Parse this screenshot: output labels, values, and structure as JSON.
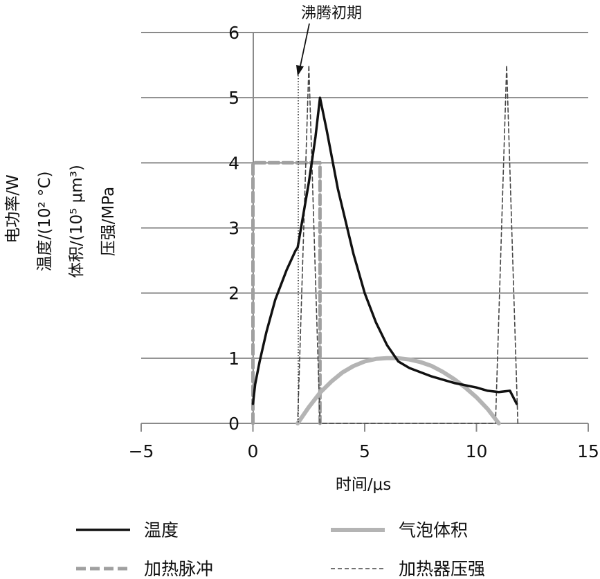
{
  "chart_data": {
    "type": "line",
    "title": "",
    "xlabel": "时间/μs",
    "ylabel_lines": [
      "电功率/W",
      "温度/(10² °C)",
      "体积/(10⁵ μm³)",
      "压强/MPa"
    ],
    "xlim": [
      -5,
      15
    ],
    "ylim": [
      0,
      6
    ],
    "x_ticks": [
      "−5",
      "0",
      "5",
      "10",
      "15"
    ],
    "y_ticks": [
      "0",
      "1",
      "2",
      "3",
      "4",
      "5",
      "6"
    ],
    "grid": "horizontal",
    "legend_position": "bottom",
    "annotation": {
      "text": "沸腾初期",
      "x": 2.0
    },
    "series": [
      {
        "name": "温度",
        "style": "solid",
        "color": "#111111",
        "points": [
          [
            0.0,
            0.3
          ],
          [
            0.1,
            0.6
          ],
          [
            0.3,
            0.95
          ],
          [
            0.6,
            1.4
          ],
          [
            1.0,
            1.9
          ],
          [
            1.5,
            2.35
          ],
          [
            1.9,
            2.65
          ],
          [
            2.0,
            2.7
          ],
          [
            2.2,
            3.1
          ],
          [
            2.5,
            3.7
          ],
          [
            2.8,
            4.4
          ],
          [
            3.0,
            5.0
          ],
          [
            3.3,
            4.5
          ],
          [
            3.8,
            3.6
          ],
          [
            4.5,
            2.6
          ],
          [
            5.0,
            2.0
          ],
          [
            5.5,
            1.55
          ],
          [
            6.0,
            1.2
          ],
          [
            6.5,
            0.95
          ],
          [
            7.0,
            0.85
          ],
          [
            8.0,
            0.72
          ],
          [
            9.0,
            0.62
          ],
          [
            10.0,
            0.55
          ],
          [
            10.5,
            0.5
          ],
          [
            11.0,
            0.48
          ],
          [
            11.5,
            0.5
          ],
          [
            11.8,
            0.3
          ]
        ]
      },
      {
        "name": "气泡体积",
        "style": "solid",
        "color": "#b4b4b4",
        "points": [
          [
            2.0,
            0.0
          ],
          [
            2.5,
            0.25
          ],
          [
            3.0,
            0.47
          ],
          [
            3.5,
            0.64
          ],
          [
            4.0,
            0.78
          ],
          [
            4.5,
            0.88
          ],
          [
            5.0,
            0.95
          ],
          [
            5.5,
            0.99
          ],
          [
            6.0,
            1.0
          ],
          [
            6.5,
            1.0
          ],
          [
            7.0,
            0.98
          ],
          [
            7.5,
            0.94
          ],
          [
            8.0,
            0.88
          ],
          [
            8.5,
            0.79
          ],
          [
            9.0,
            0.68
          ],
          [
            9.5,
            0.55
          ],
          [
            10.0,
            0.4
          ],
          [
            10.5,
            0.22
          ],
          [
            11.0,
            0.0
          ]
        ]
      },
      {
        "name": "加热脉冲",
        "style": "dashed",
        "color": "#a0a0a0",
        "points": [
          [
            0.0,
            0.0
          ],
          [
            0.0,
            4.0
          ],
          [
            3.0,
            4.0
          ],
          [
            3.0,
            0.0
          ]
        ]
      },
      {
        "name": "加热器压强",
        "style": "dashed",
        "color": "#444444",
        "points": [
          [
            2.0,
            0.0
          ],
          [
            2.5,
            5.5
          ],
          [
            3.0,
            0.0
          ],
          [
            10.85,
            0.0
          ],
          [
            11.35,
            5.5
          ],
          [
            11.85,
            0.0
          ]
        ]
      }
    ]
  }
}
